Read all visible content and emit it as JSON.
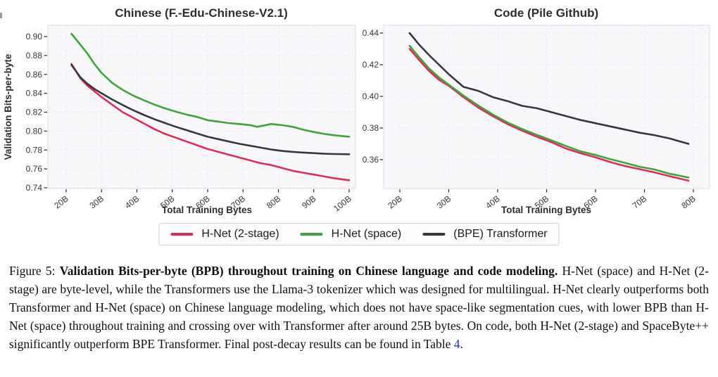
{
  "legend": {
    "items": [
      {
        "label": "H-Net (2-stage)",
        "color": "#e22b5a"
      },
      {
        "label": "H-Net (space)",
        "color": "#3fa43c"
      },
      {
        "label": "(BPE) Transformer",
        "color": "#37373f"
      }
    ]
  },
  "chart_data": [
    {
      "type": "line",
      "title": "Chinese (F.-Edu-Chinese-V2.1)",
      "xlabel": "Total Training Bytes",
      "ylabel": "Validation Bits-per-byte",
      "x_ticks": [
        "20B",
        "30B",
        "40B",
        "50B",
        "60B",
        "70B",
        "80B",
        "90B",
        "100B"
      ],
      "y_ticks": [
        "0.74",
        "0.76",
        "0.78",
        "0.80",
        "0.82",
        "0.84",
        "0.86",
        "0.88",
        "0.90"
      ],
      "xlim": [
        15,
        102
      ],
      "ylim": [
        0.739,
        0.912
      ],
      "grid": true,
      "legend_position": "below-figure",
      "series": [
        {
          "name": "H-Net (2-stage)",
          "color": "#e22b5a",
          "x": [
            21.5,
            24,
            26,
            28,
            30,
            33,
            36,
            39,
            42,
            45,
            48,
            51,
            54,
            57,
            60,
            63,
            66,
            69,
            72,
            75,
            78,
            81,
            84,
            87,
            90,
            93,
            96,
            100
          ],
          "y": [
            0.871,
            0.856,
            0.848,
            0.842,
            0.836,
            0.828,
            0.82,
            0.814,
            0.808,
            0.802,
            0.797,
            0.793,
            0.789,
            0.785,
            0.781,
            0.778,
            0.775,
            0.772,
            0.769,
            0.766,
            0.764,
            0.761,
            0.758,
            0.756,
            0.754,
            0.752,
            0.75,
            0.748
          ]
        },
        {
          "name": "H-Net (space)",
          "color": "#3fa43c",
          "x": [
            21.5,
            24,
            26,
            28,
            30,
            33,
            36,
            39,
            42,
            45,
            48,
            51,
            54,
            57,
            60,
            63,
            66,
            69,
            72,
            74,
            78,
            81,
            84,
            87,
            90,
            93,
            96,
            100
          ],
          "y": [
            0.903,
            0.8915,
            0.882,
            0.871,
            0.8615,
            0.851,
            0.8435,
            0.8375,
            0.8325,
            0.828,
            0.824,
            0.8205,
            0.8175,
            0.815,
            0.8115,
            0.81,
            0.8085,
            0.8075,
            0.8063,
            0.8045,
            0.8075,
            0.8063,
            0.8045,
            0.8015,
            0.799,
            0.797,
            0.7955,
            0.794
          ]
        },
        {
          "name": "(BPE) Transformer",
          "color": "#37373f",
          "x": [
            21.5,
            24,
            26,
            28,
            30,
            33,
            36,
            39,
            42,
            45,
            48,
            51,
            54,
            57,
            60,
            63,
            66,
            69,
            72,
            75,
            78,
            81,
            84,
            87,
            90,
            93,
            96,
            100
          ],
          "y": [
            0.87,
            0.857,
            0.85,
            0.8445,
            0.84,
            0.8335,
            0.8275,
            0.822,
            0.817,
            0.8125,
            0.8085,
            0.8045,
            0.801,
            0.7975,
            0.794,
            0.7915,
            0.789,
            0.7865,
            0.7845,
            0.7825,
            0.7805,
            0.779,
            0.778,
            0.7773,
            0.7767,
            0.776,
            0.7757,
            0.7755
          ]
        }
      ]
    },
    {
      "type": "line",
      "title": "Code (Pile Github)",
      "xlabel": "Total Training Bytes",
      "ylabel": "",
      "x_ticks": [
        "20B",
        "30B",
        "40B",
        "50B",
        "60B",
        "70B",
        "80B"
      ],
      "y_ticks": [
        "0.36",
        "0.38",
        "0.40",
        "0.42",
        "0.44"
      ],
      "xlim": [
        16.7,
        83.3
      ],
      "ylim": [
        0.342,
        0.445
      ],
      "grid": true,
      "legend_position": "below-figure",
      "series": [
        {
          "name": "H-Net (2-stage)",
          "color": "#e22b5a",
          "x": [
            22,
            24,
            26,
            28,
            30,
            33,
            36,
            39,
            42,
            45,
            48,
            51,
            54,
            57,
            60,
            63,
            66,
            69,
            72,
            75,
            79
          ],
          "y": [
            0.43,
            0.4228,
            0.416,
            0.4105,
            0.4067,
            0.3995,
            0.393,
            0.3875,
            0.3825,
            0.3783,
            0.3745,
            0.371,
            0.367,
            0.364,
            0.3615,
            0.3585,
            0.356,
            0.354,
            0.352,
            0.3497,
            0.3467
          ]
        },
        {
          "name": "H-Net (space)",
          "color": "#3fa43c",
          "x": [
            22,
            24,
            26,
            28,
            30,
            33,
            36,
            39,
            42,
            45,
            48,
            51,
            54,
            57,
            60,
            63,
            66,
            69,
            72,
            75,
            79
          ],
          "y": [
            0.432,
            0.4245,
            0.4175,
            0.412,
            0.4074,
            0.4005,
            0.3942,
            0.3885,
            0.3835,
            0.3793,
            0.3757,
            0.3722,
            0.3686,
            0.3652,
            0.363,
            0.3603,
            0.358,
            0.3555,
            0.3538,
            0.3512,
            0.3487
          ]
        },
        {
          "name": "(BPE) Transformer",
          "color": "#37373f",
          "x": [
            22,
            24,
            26,
            28,
            30,
            33,
            36,
            39,
            42,
            45,
            48,
            51,
            54,
            57,
            60,
            63,
            66,
            69,
            72,
            75,
            79
          ],
          "y": [
            0.44,
            0.4325,
            0.426,
            0.42,
            0.414,
            0.406,
            0.4035,
            0.3995,
            0.397,
            0.394,
            0.3925,
            0.39,
            0.3875,
            0.385,
            0.383,
            0.381,
            0.379,
            0.377,
            0.3755,
            0.3735,
            0.37
          ]
        }
      ]
    }
  ],
  "caption": {
    "prefix": "Figure 5: ",
    "bold": "Validation Bits-per-byte (BPB) throughout training on Chinese language and code modeling.",
    "body": " H-Net (space) and H-Net (2-stage) are byte-level, while the Transformers use the Llama-3 tokenizer which was designed for multilingual. H-Net clearly outperforms both Transformer and H-Net (space) on Chinese language modeling, which does not have space-like segmentation cues, with lower BPB than H-Net (space) throughout training and crossing over with Transformer after around 25B bytes. On code, both H-Net (2-stage) and SpaceByte++ significantly outperform BPE Transformer. Final post-decay results can be found in Table ",
    "link_text": "4",
    "suffix": ".",
    "link_color": "#2433cc"
  }
}
